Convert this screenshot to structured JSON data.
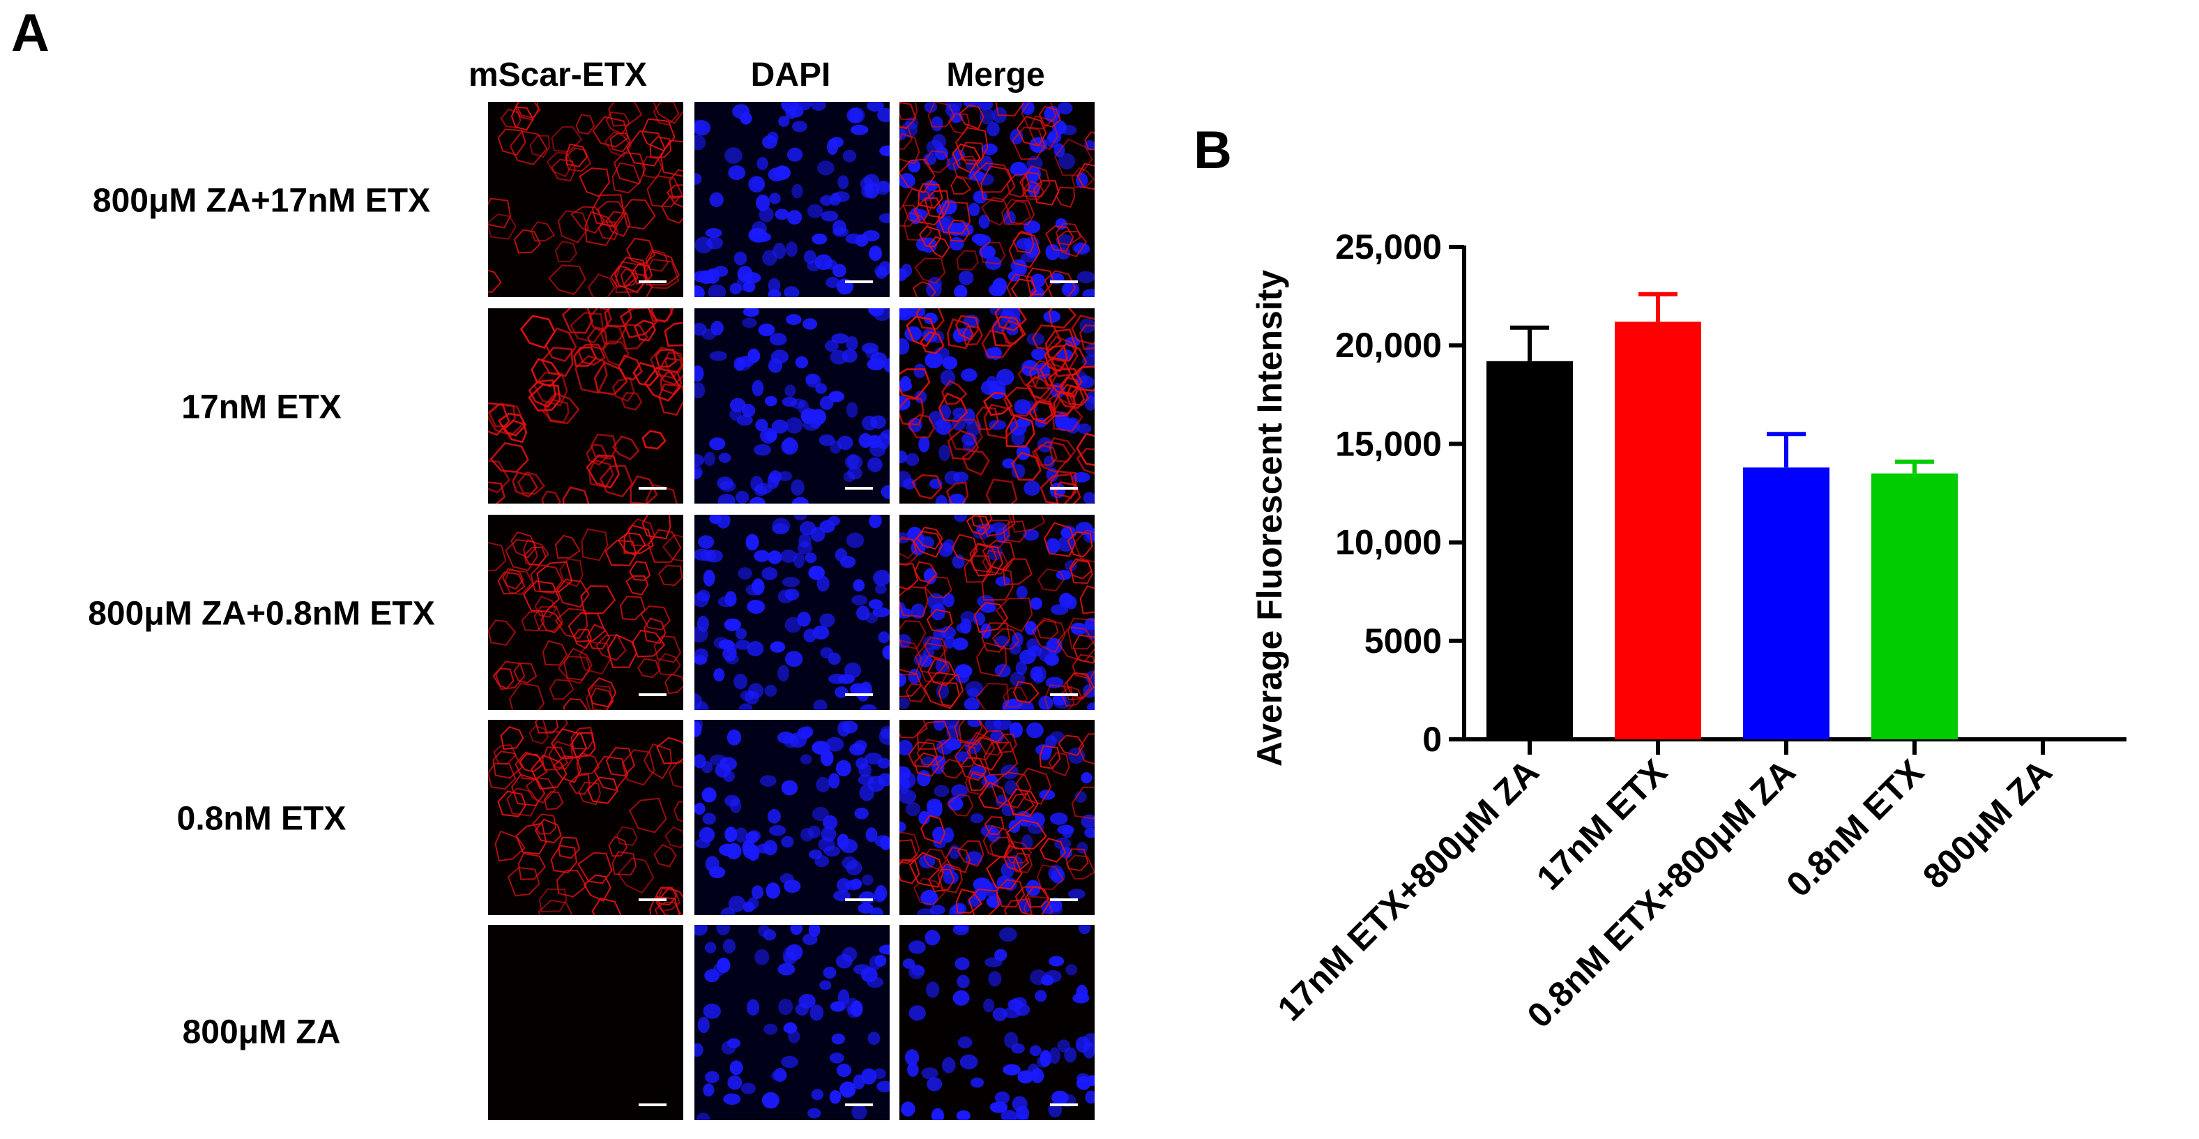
{
  "panel_a": {
    "letter": "A",
    "columns": [
      "mScar-ETX",
      "DAPI",
      "Merge"
    ],
    "rows": [
      "800μM ZA+17nM ETX",
      "17nM ETX",
      "800μM ZA+0.8nM ETX",
      "0.8nM ETX",
      "800μM ZA"
    ]
  },
  "panel_b": {
    "letter": "B"
  },
  "colors": {
    "black": "#000000",
    "red": "#ff0000",
    "blue": "#0000ff",
    "green": "#00cc00",
    "membrane_red": "#e01010",
    "nucleus_blue": "#1a1aff"
  },
  "chart_data": {
    "type": "bar",
    "title": "",
    "xlabel": "",
    "ylabel": "Average Fluorescent Intensity",
    "ylim": [
      0,
      25000
    ],
    "yticks": [
      0,
      5000,
      10000,
      15000,
      20000,
      25000
    ],
    "ytick_labels": [
      "0",
      "5000",
      "10,000",
      "15,000",
      "20,000",
      "25,000"
    ],
    "categories": [
      "17nM ETX+800μM ZA",
      "17nM ETX",
      "0.8nM ETX+800μM ZA",
      "0.8nM ETX",
      "800μM ZA"
    ],
    "values": [
      19200,
      21200,
      13800,
      13500,
      0
    ],
    "errors": [
      1700,
      1400,
      1700,
      600,
      0
    ],
    "bar_colors": [
      "#000000",
      "#ff0000",
      "#0000ff",
      "#00cc00",
      "#000000"
    ],
    "grid": false
  }
}
